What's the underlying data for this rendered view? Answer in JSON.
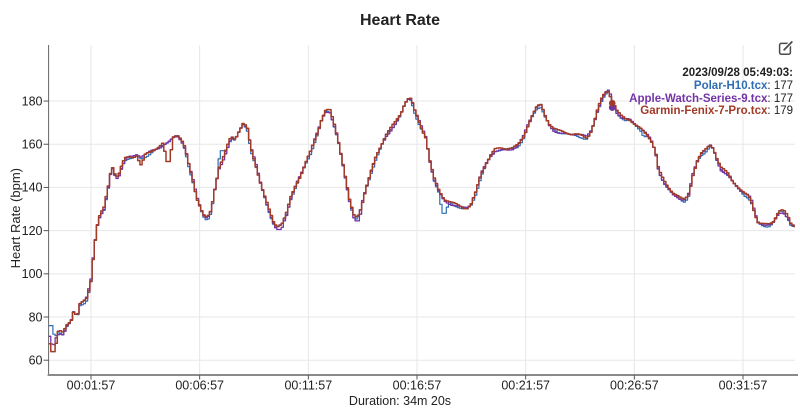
{
  "title": "Heart Rate",
  "toolbar": {
    "edit_icon": "edit-icon"
  },
  "legend": {
    "timestamp": "2023/09/28 05:49:03:",
    "separator": ": ",
    "entries": [
      {
        "label": "Polar-H10.tcx",
        "value": 177,
        "color": "#2e6db4"
      },
      {
        "label": "Apple-Watch-Series-9.tcx",
        "value": 177,
        "color": "#7334a8"
      },
      {
        "label": "Garmin-Fenix-7-Pro.tcx",
        "value": 179,
        "color": "#a23a28"
      }
    ]
  },
  "duration_label": "Duration: 34m 20s",
  "chart_data": {
    "type": "line",
    "title": "Heart Rate",
    "ylabel": "Heart Rate (bpm)",
    "xlabel": "",
    "x_unit": "seconds",
    "x_range": [
      0,
      2060
    ],
    "y_ticks": [
      60,
      80,
      100,
      120,
      140,
      160,
      180
    ],
    "x_ticks": [
      {
        "t": 117,
        "label": "00:01:57"
      },
      {
        "t": 417,
        "label": "00:06:57"
      },
      {
        "t": 717,
        "label": "00:11:57"
      },
      {
        "t": 1017,
        "label": "00:16:57"
      },
      {
        "t": 1317,
        "label": "00:21:57"
      },
      {
        "t": 1617,
        "label": "00:26:57"
      },
      {
        "t": 1917,
        "label": "00:31:57"
      }
    ],
    "grid": true,
    "legend_position": "top-right",
    "base_points": [
      [
        0,
        71
      ],
      [
        9,
        66
      ],
      [
        18,
        71
      ],
      [
        26,
        73
      ],
      [
        37,
        72
      ],
      [
        48,
        76
      ],
      [
        59,
        78
      ],
      [
        67,
        83
      ],
      [
        76,
        80
      ],
      [
        84,
        86
      ],
      [
        92,
        87
      ],
      [
        101,
        88
      ],
      [
        109,
        93
      ],
      [
        114,
        97
      ],
      [
        123,
        112
      ],
      [
        131,
        122
      ],
      [
        139,
        127
      ],
      [
        150,
        130
      ],
      [
        161,
        139
      ],
      [
        170,
        148
      ],
      [
        175,
        149
      ],
      [
        183,
        144
      ],
      [
        192,
        146
      ],
      [
        200,
        150
      ],
      [
        208,
        153
      ],
      [
        219,
        154
      ],
      [
        230,
        154
      ],
      [
        241,
        155
      ],
      [
        252,
        154
      ],
      [
        263,
        155
      ],
      [
        274,
        156
      ],
      [
        285,
        157
      ],
      [
        297,
        158
      ],
      [
        308,
        159
      ],
      [
        319,
        160.5
      ],
      [
        330,
        161.5
      ],
      [
        341,
        163
      ],
      [
        352,
        164
      ],
      [
        363,
        162
      ],
      [
        374,
        158
      ],
      [
        385,
        150
      ],
      [
        396,
        143
      ],
      [
        407,
        135
      ],
      [
        418,
        130
      ],
      [
        426,
        127
      ],
      [
        435,
        125.5
      ],
      [
        446,
        129
      ],
      [
        457,
        140
      ],
      [
        468,
        149
      ],
      [
        479,
        153
      ],
      [
        490,
        158
      ],
      [
        501,
        163
      ],
      [
        512,
        162
      ],
      [
        523,
        166
      ],
      [
        534,
        169.5
      ],
      [
        545,
        168
      ],
      [
        556,
        158
      ],
      [
        570,
        150
      ],
      [
        584,
        141
      ],
      [
        597,
        134
      ],
      [
        608,
        128
      ],
      [
        620,
        122.5
      ],
      [
        631,
        121.5
      ],
      [
        642,
        123
      ],
      [
        653,
        127
      ],
      [
        666,
        135
      ],
      [
        680,
        141
      ],
      [
        694,
        146
      ],
      [
        708,
        152
      ],
      [
        719,
        156
      ],
      [
        730,
        161
      ],
      [
        741,
        166
      ],
      [
        752,
        172
      ],
      [
        763,
        175.5
      ],
      [
        774,
        175
      ],
      [
        785,
        169
      ],
      [
        796,
        162
      ],
      [
        807,
        153
      ],
      [
        818,
        143
      ],
      [
        829,
        133
      ],
      [
        840,
        127
      ],
      [
        849,
        126
      ],
      [
        860,
        131
      ],
      [
        874,
        140
      ],
      [
        887,
        147
      ],
      [
        901,
        154
      ],
      [
        915,
        159
      ],
      [
        929,
        164
      ],
      [
        943,
        167
      ],
      [
        956,
        170
      ],
      [
        970,
        174
      ],
      [
        981,
        179
      ],
      [
        990,
        181
      ],
      [
        998,
        181
      ],
      [
        1009,
        175
      ],
      [
        1023,
        169
      ],
      [
        1039,
        163
      ],
      [
        1050,
        152
      ],
      [
        1061,
        144
      ],
      [
        1075,
        138
      ],
      [
        1089,
        134
      ],
      [
        1108,
        132.5
      ],
      [
        1125,
        131.5
      ],
      [
        1141,
        130.5
      ],
      [
        1152,
        130.5
      ],
      [
        1163,
        132
      ],
      [
        1177,
        138
      ],
      [
        1191,
        146
      ],
      [
        1205,
        151
      ],
      [
        1219,
        155
      ],
      [
        1230,
        157
      ],
      [
        1246,
        157.5
      ],
      [
        1263,
        157.5
      ],
      [
        1279,
        158
      ],
      [
        1293,
        159.5
      ],
      [
        1307,
        163
      ],
      [
        1321,
        169
      ],
      [
        1334,
        174
      ],
      [
        1346,
        177.5
      ],
      [
        1357,
        178
      ],
      [
        1368,
        173
      ],
      [
        1379,
        169
      ],
      [
        1393,
        166.5
      ],
      [
        1406,
        165.5
      ],
      [
        1423,
        165
      ],
      [
        1440,
        164.5
      ],
      [
        1456,
        164.5
      ],
      [
        1470,
        164
      ],
      [
        1481,
        163
      ],
      [
        1492,
        165
      ],
      [
        1503,
        170
      ],
      [
        1514,
        176.5
      ],
      [
        1525,
        181
      ],
      [
        1534,
        183.5
      ],
      [
        1542,
        184
      ],
      [
        1550,
        181
      ],
      [
        1558,
        178
      ],
      [
        1567,
        174.5
      ],
      [
        1578,
        172.5
      ],
      [
        1589,
        171.5
      ],
      [
        1600,
        171.5
      ],
      [
        1611,
        170
      ],
      [
        1622,
        168.5
      ],
      [
        1633,
        167
      ],
      [
        1647,
        164.5
      ],
      [
        1660,
        162
      ],
      [
        1672,
        157
      ],
      [
        1680,
        149
      ],
      [
        1688,
        145
      ],
      [
        1699,
        141.5
      ],
      [
        1710,
        139
      ],
      [
        1721,
        137
      ],
      [
        1732,
        136
      ],
      [
        1743,
        134.5
      ],
      [
        1754,
        134
      ],
      [
        1765,
        137
      ],
      [
        1776,
        146
      ],
      [
        1787,
        152
      ],
      [
        1798,
        155.5
      ],
      [
        1809,
        157
      ],
      [
        1817,
        158.5
      ],
      [
        1826,
        159.5
      ],
      [
        1834,
        157
      ],
      [
        1842,
        153
      ],
      [
        1853,
        148.5
      ],
      [
        1864,
        147
      ],
      [
        1875,
        145.5
      ],
      [
        1886,
        142.5
      ],
      [
        1897,
        140.5
      ],
      [
        1908,
        138.5
      ],
      [
        1919,
        137
      ],
      [
        1930,
        136
      ],
      [
        1939,
        133
      ],
      [
        1947,
        128
      ],
      [
        1955,
        124
      ],
      [
        1966,
        123
      ],
      [
        1977,
        122.5
      ],
      [
        1988,
        122.5
      ],
      [
        1999,
        124
      ],
      [
        2010,
        127.5
      ],
      [
        2018,
        129
      ],
      [
        2027,
        128.5
      ],
      [
        2038,
        126
      ],
      [
        2046,
        123
      ],
      [
        2055,
        122
      ],
      [
        2060,
        121.5
      ]
    ],
    "series": [
      {
        "name": "Polar-H10.tcx",
        "color": "#2e6db4",
        "deviations": [
          [
            3,
            76
          ],
          [
            479,
            157
          ],
          [
            1089,
            128
          ],
          [
            1645,
            163.5
          ]
        ]
      },
      {
        "name": "Apple-Watch-Series-9.tcx",
        "color": "#7334a8",
        "deviations": [
          [
            631,
            120.5
          ],
          [
            849,
            124.5
          ],
          [
            1542,
            185
          ]
        ]
      },
      {
        "name": "Garmin-Fenix-7-Pro.tcx",
        "color": "#a23a28",
        "deviations": [
          [
            10,
            64
          ],
          [
            252,
            150.5
          ],
          [
            327,
            152
          ]
        ]
      }
    ],
    "selected_point": {
      "t": 1556,
      "values": [
        177,
        177,
        179
      ]
    },
    "duration_seconds": 2060
  }
}
